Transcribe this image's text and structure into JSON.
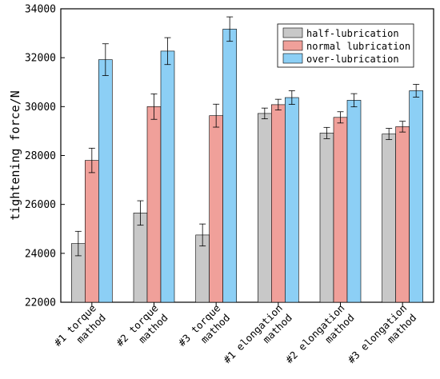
{
  "chart_data": {
    "type": "bar",
    "ylabel": "tightening force/N",
    "xlabel": "",
    "ylim": [
      22000,
      34000
    ],
    "yticks": [
      22000,
      24000,
      26000,
      28000,
      30000,
      32000,
      34000
    ],
    "error_bars": true,
    "legend_position": "top-right",
    "categories": [
      [
        "#1 torque",
        "mathod"
      ],
      [
        "#2 torque",
        "mathod"
      ],
      [
        "#3 torque",
        "mathod"
      ],
      [
        "#1 elongation",
        "mathod"
      ],
      [
        "#2 elongation",
        "mathod"
      ],
      [
        "#3 elongation",
        "mathod"
      ]
    ],
    "series": [
      {
        "name": "half-lubrication",
        "color": "#c8c8c8",
        "values": [
          24400,
          25650,
          24750,
          29720,
          28920,
          28880
        ],
        "errors": [
          500,
          500,
          450,
          220,
          230,
          230
        ]
      },
      {
        "name": "normal lubrication",
        "color": "#f0a09a",
        "values": [
          27800,
          30000,
          29630,
          30080,
          29560,
          29180
        ],
        "errors": [
          500,
          520,
          470,
          220,
          230,
          220
        ]
      },
      {
        "name": "over-lubrication",
        "color": "#8ccff5",
        "values": [
          31920,
          32270,
          33170,
          30370,
          30260,
          30650
        ],
        "errors": [
          650,
          550,
          500,
          280,
          270,
          260
        ]
      }
    ]
  }
}
